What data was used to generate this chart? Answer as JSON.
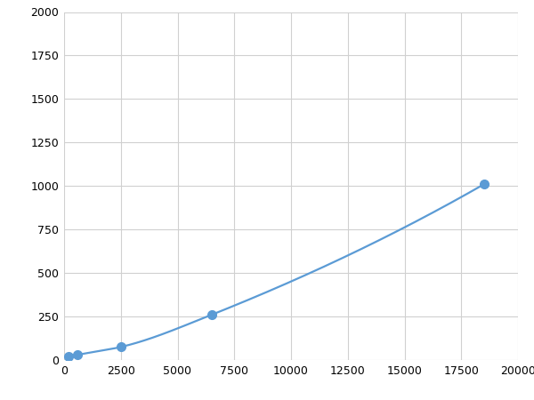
{
  "x": [
    200,
    600,
    2500,
    6500,
    18500
  ],
  "y": [
    20,
    30,
    75,
    260,
    1010
  ],
  "line_color": "#5b9bd5",
  "marker_color": "#5b9bd5",
  "marker_size": 7,
  "line_width": 1.6,
  "xlim": [
    0,
    20000
  ],
  "ylim": [
    0,
    2000
  ],
  "xticks": [
    0,
    2500,
    5000,
    7500,
    10000,
    12500,
    15000,
    17500,
    20000
  ],
  "yticks": [
    0,
    250,
    500,
    750,
    1000,
    1250,
    1500,
    1750,
    2000
  ],
  "background_color": "#ffffff",
  "grid_color": "#d0d0d0",
  "figsize": [
    6.0,
    4.5
  ],
  "dpi": 100
}
